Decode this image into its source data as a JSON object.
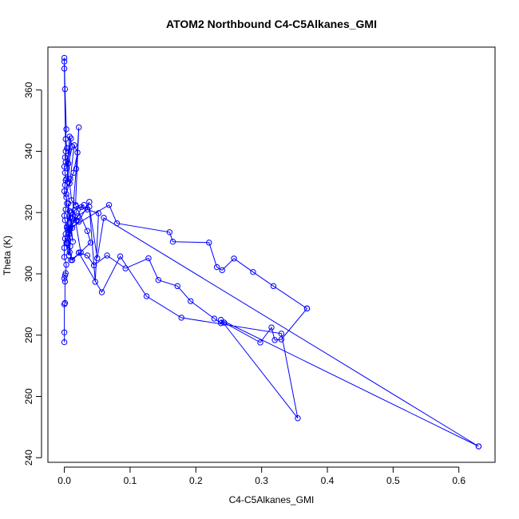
{
  "chart_data": {
    "type": "line",
    "title": "ATOM2 Northbound C4-C5Alkanes_GMI",
    "xlabel": "C4-C5Alkanes_GMI",
    "ylabel": "Theta (K)",
    "xlim": [
      -0.025,
      0.655
    ],
    "ylim": [
      238.5,
      374.0
    ],
    "xticks": [
      0.0,
      0.1,
      0.2,
      0.3,
      0.4,
      0.5,
      0.6
    ],
    "xtick_labels": [
      "0.0",
      "0.1",
      "0.2",
      "0.3",
      "0.4",
      "0.5",
      "0.6"
    ],
    "yticks": [
      240,
      260,
      280,
      300,
      320,
      340,
      360
    ],
    "ytick_labels": [
      "240",
      "260",
      "280",
      "300",
      "320",
      "340",
      "360"
    ],
    "grid": false,
    "color": "#0000ff",
    "series": [
      {
        "x": [
          0.0,
          0.0,
          0.0,
          0.001,
          0.001,
          0.0,
          0.001,
          0.002,
          0.003,
          0.0,
          0.0,
          0.001,
          0.002,
          0.004,
          0.001,
          0.0,
          0.002,
          0.004,
          0.003,
          0.0,
          0.001,
          0.002,
          0.003,
          0.001,
          0.0,
          0.002,
          0.001,
          0.004,
          0.002,
          0.003,
          0.001,
          0.0,
          0.0,
          0.0,
          0.002,
          0.006,
          0.01,
          0.004,
          0.008,
          0.012,
          0.006,
          0.003,
          0.009,
          0.015,
          0.02,
          0.014,
          0.008,
          0.011,
          0.017,
          0.022,
          0.018,
          0.012,
          0.007,
          0.01,
          0.025,
          0.016,
          0.009,
          0.013,
          0.006,
          0.004,
          0.008,
          0.005,
          0.011,
          0.003,
          0.007,
          0.01,
          0.01,
          0.03,
          0.026,
          0.018,
          0.015,
          0.008,
          0.02,
          0.035,
          0.038,
          0.022,
          0.012,
          0.006,
          0.009,
          0.005,
          0.005,
          0.068,
          0.08,
          0.16,
          0.165,
          0.22,
          0.232,
          0.24,
          0.258,
          0.287,
          0.318,
          0.369,
          0.369,
          0.33,
          0.32,
          0.315,
          0.298,
          0.243,
          0.238,
          0.228,
          0.192,
          0.172,
          0.143,
          0.128,
          0.093,
          0.065,
          0.045,
          0.035,
          0.022,
          0.022,
          0.057,
          0.085,
          0.125,
          0.178,
          0.33,
          0.355,
          0.238,
          0.63,
          0.63,
          0.06,
          0.05,
          0.038,
          0.047,
          0.052,
          0.018,
          0.035,
          0.04,
          0.012,
          0.008,
          0.005
        ],
        "y": [
          277.7,
          280.9,
          290.1,
          290.5,
          297.5,
          298.5,
          299.5,
          300.2,
          303.0,
          305.5,
          308.5,
          311.5,
          313.0,
          315.0,
          317.5,
          319.0,
          321.0,
          323.0,
          325.0,
          327.0,
          329.0,
          330.5,
          331.0,
          333.0,
          335.0,
          336.5,
          338.0,
          341.0,
          344.0,
          347.2,
          360.3,
          369.3,
          370.5,
          367.0,
          340.0,
          330.0,
          344.2,
          334.5,
          344.8,
          341.5,
          336.0,
          326.0,
          331.0,
          342.0,
          339.6,
          333.0,
          329.5,
          324.0,
          322.5,
          347.8,
          334.3,
          318.0,
          313.0,
          304.5,
          307.0,
          318.5,
          315.0,
          310.5,
          323.0,
          315.5,
          320.5,
          312.0,
          318.0,
          310.0,
          306.0,
          320.0,
          320.0,
          322.5,
          321.8,
          317.5,
          320.6,
          314.5,
          318.8,
          321.0,
          323.5,
          317.0,
          315.0,
          311.0,
          309.0,
          314.5,
          314.5,
          322.5,
          316.5,
          313.6,
          310.5,
          310.2,
          302.2,
          301.2,
          305.0,
          300.6,
          296.0,
          288.7,
          288.7,
          278.6,
          278.4,
          282.5,
          277.6,
          284.1,
          283.9,
          285.4,
          291.1,
          296.0,
          298.0,
          305.1,
          301.8,
          306.0,
          302.8,
          306.0,
          306.9,
          306.9,
          294.0,
          305.7,
          292.7,
          285.7,
          280.5,
          252.9,
          285.0,
          243.7,
          243.7,
          318.3,
          305.1,
          321.9,
          297.4,
          319.8,
          322.1,
          314.0,
          310.2,
          304.5,
          307.1,
          310.0
        ]
      }
    ]
  }
}
